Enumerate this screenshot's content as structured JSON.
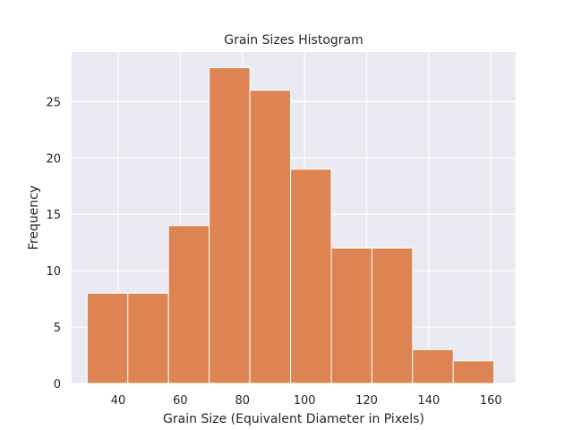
{
  "chart_data": {
    "type": "bar",
    "title": "Grain Sizes Histogram",
    "xlabel": "Grain Size (Equivalent Diameter in Pixels)",
    "ylabel": "Frequency",
    "xlim": [
      25,
      168
    ],
    "ylim": [
      0,
      29.4
    ],
    "xticks": [
      40,
      60,
      80,
      100,
      120,
      140,
      160
    ],
    "yticks": [
      0,
      5,
      10,
      15,
      20,
      25
    ],
    "grid": true,
    "bar_color": "#dd8452",
    "plot_background": "#eaeaf2",
    "bins": [
      {
        "x0": 30.0,
        "x1": 43.1,
        "value": 8
      },
      {
        "x0": 43.1,
        "x1": 56.2,
        "value": 8
      },
      {
        "x0": 56.2,
        "x1": 69.3,
        "value": 14
      },
      {
        "x0": 69.3,
        "x1": 82.4,
        "value": 28
      },
      {
        "x0": 82.4,
        "x1": 95.5,
        "value": 26
      },
      {
        "x0": 95.5,
        "x1": 108.6,
        "value": 19
      },
      {
        "x0": 108.6,
        "x1": 121.7,
        "value": 12
      },
      {
        "x0": 121.7,
        "x1": 134.8,
        "value": 12
      },
      {
        "x0": 134.8,
        "x1": 147.9,
        "value": 3
      },
      {
        "x0": 147.9,
        "x1": 161.0,
        "value": 2
      }
    ]
  }
}
